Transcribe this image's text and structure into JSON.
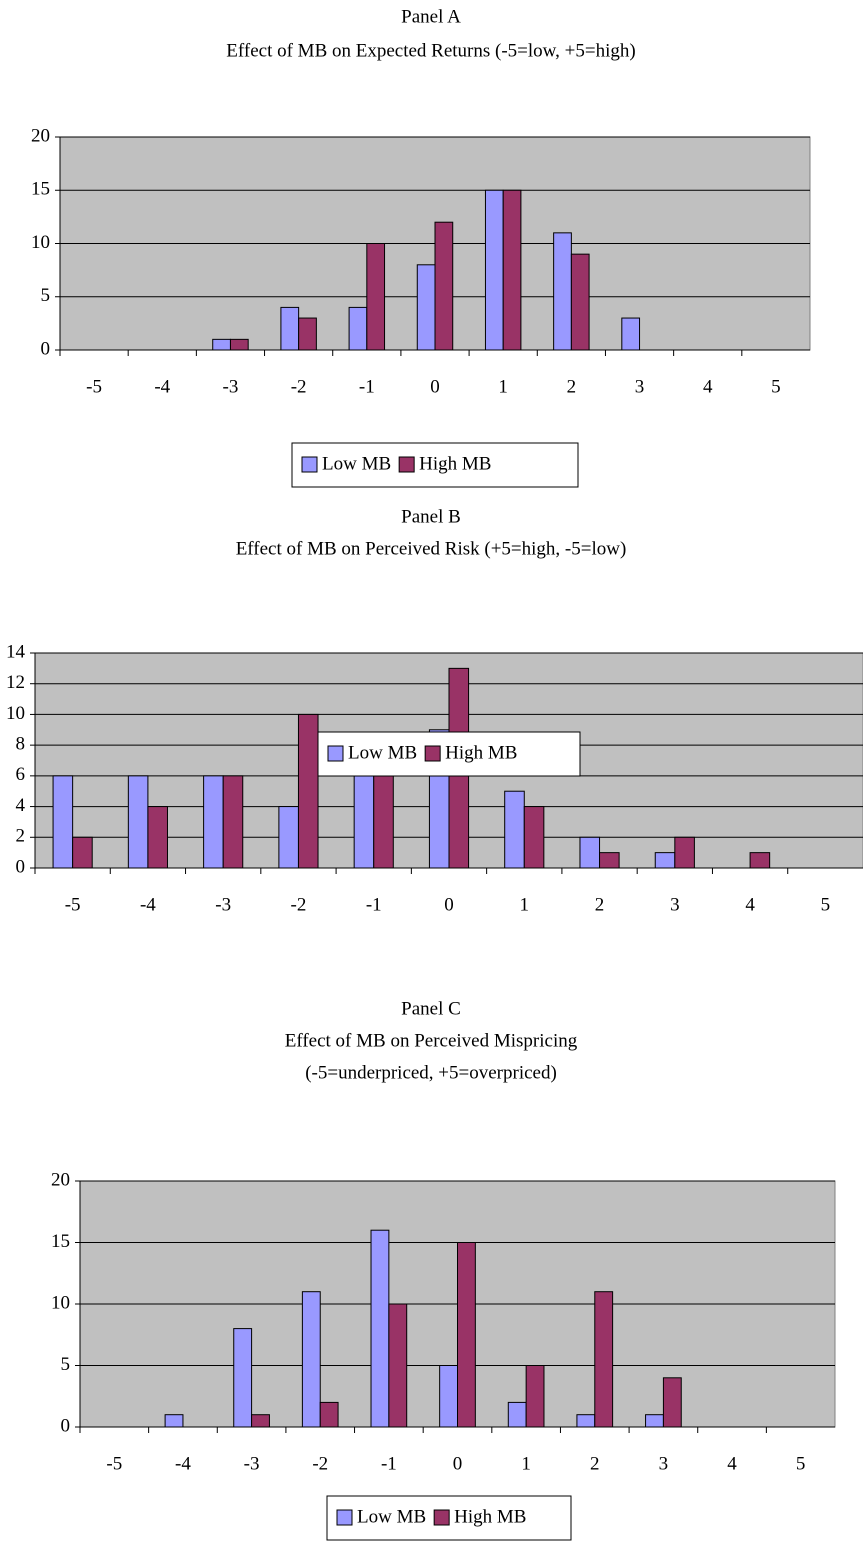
{
  "chart_data": [
    {
      "type": "bar",
      "title": "Panel A",
      "subtitle": [
        "Effect of MB on Expected Returns (-5=low, +5=high)"
      ],
      "categories": [
        "-5",
        "-4",
        "-3",
        "-2",
        "-1",
        "0",
        "1",
        "2",
        "3",
        "4",
        "5"
      ],
      "series": [
        {
          "name": "Low MB",
          "color": "#9999ff",
          "values": [
            0,
            0,
            1,
            4,
            4,
            8,
            15,
            11,
            3,
            0,
            0
          ]
        },
        {
          "name": "High MB",
          "color": "#993366",
          "values": [
            0,
            0,
            1,
            3,
            10,
            12,
            15,
            9,
            0,
            0,
            0
          ]
        }
      ],
      "ylim": [
        0,
        20
      ],
      "yticks": [
        0,
        5,
        10,
        15,
        20
      ],
      "grid": true,
      "legend": "bottom"
    },
    {
      "type": "bar",
      "title": "Panel B",
      "subtitle": [
        "Effect of MB on Perceived Risk (+5=high, -5=low)"
      ],
      "categories": [
        "-5",
        "-4",
        "-3",
        "-2",
        "-1",
        "0",
        "1",
        "2",
        "3",
        "4",
        "5"
      ],
      "series": [
        {
          "name": "Low MB",
          "color": "#9999ff",
          "values": [
            6,
            6,
            6,
            4,
            7,
            9,
            5,
            2,
            1,
            0,
            0
          ]
        },
        {
          "name": "High MB",
          "color": "#993366",
          "values": [
            2,
            4,
            6,
            10,
            7,
            13,
            4,
            1,
            2,
            1,
            0
          ]
        }
      ],
      "ylim": [
        0,
        14
      ],
      "yticks": [
        0,
        2,
        4,
        6,
        8,
        10,
        12,
        14
      ],
      "grid": true,
      "legend": "bottom"
    },
    {
      "type": "bar",
      "title": "Panel C",
      "subtitle": [
        "Effect of MB on Perceived Mispricing",
        "(-5=underpriced, +5=overpriced)"
      ],
      "categories": [
        "-5",
        "-4",
        "-3",
        "-2",
        "-1",
        "0",
        "1",
        "2",
        "3",
        "4",
        "5"
      ],
      "series": [
        {
          "name": "Low MB",
          "color": "#9999ff",
          "values": [
            0,
            1,
            8,
            11,
            16,
            5,
            2,
            1,
            1,
            0,
            0
          ]
        },
        {
          "name": "High MB",
          "color": "#993366",
          "values": [
            0,
            0,
            1,
            2,
            10,
            15,
            5,
            11,
            4,
            0,
            0
          ]
        }
      ],
      "ylim": [
        0,
        20
      ],
      "yticks": [
        0,
        5,
        10,
        15,
        20
      ],
      "grid": true,
      "legend": "bottom"
    }
  ]
}
